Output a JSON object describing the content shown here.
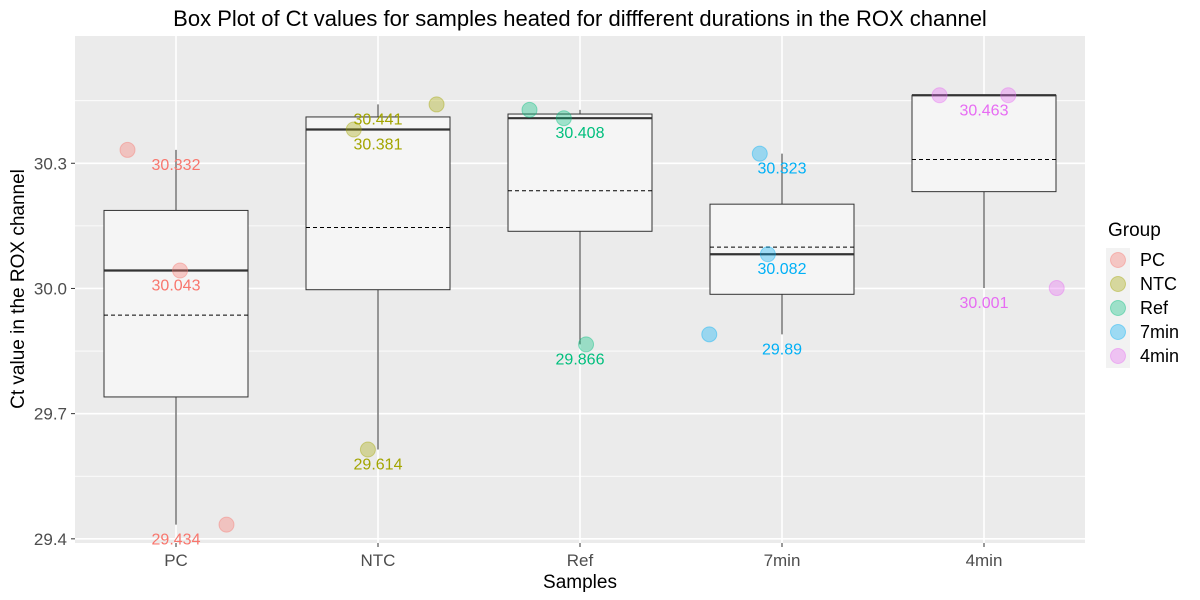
{
  "chart_data": {
    "type": "box",
    "title": "Box Plot of Ct values for samples heated for diffferent durations in the ROX channel",
    "xlabel": "Samples",
    "ylabel": "Ct value in the ROX channel",
    "ylim": [
      29.39,
      30.605
    ],
    "yticks": [
      29.4,
      29.7,
      30.0,
      30.3
    ],
    "ytick_labels": [
      "29.4",
      "29.7",
      "30.0",
      "30.3"
    ],
    "categories": [
      "PC",
      "NTC",
      "Ref",
      "7min",
      "4min"
    ],
    "grid": true,
    "legend": {
      "title": "Group",
      "position": "right"
    },
    "colors": {
      "PC": "#F8766D",
      "NTC": "#A3A500",
      "Ref": "#00BF7D",
      "7min": "#00B0F6",
      "4min": "#E76BF3"
    },
    "boxes": [
      {
        "name": "PC",
        "whisker_low": 29.434,
        "q1": 29.74,
        "median": 30.043,
        "q3": 30.187,
        "whisker_high": 30.332,
        "mean": 29.936
      },
      {
        "name": "NTC",
        "whisker_low": 29.614,
        "q1": 29.997,
        "median": 30.381,
        "q3": 30.411,
        "whisker_high": 30.441,
        "mean": 30.146
      },
      {
        "name": "Ref",
        "whisker_low": 29.866,
        "q1": 30.137,
        "median": 30.408,
        "q3": 30.418,
        "whisker_high": 30.428,
        "mean": 30.234
      },
      {
        "name": "7min",
        "whisker_low": 29.89,
        "q1": 29.986,
        "median": 30.082,
        "q3": 30.202,
        "whisker_high": 30.323,
        "mean": 30.099
      },
      {
        "name": "4min",
        "whisker_low": 30.001,
        "q1": 30.232,
        "median": 30.463,
        "q3": 30.463,
        "whisker_high": 30.463,
        "mean": 30.309
      }
    ],
    "points": [
      {
        "group": "PC",
        "offset": -0.24,
        "y": 30.332
      },
      {
        "group": "PC",
        "offset": 0.02,
        "y": 30.043
      },
      {
        "group": "PC",
        "offset": 0.25,
        "y": 29.434
      },
      {
        "group": "NTC",
        "offset": -0.12,
        "y": 30.381
      },
      {
        "group": "NTC",
        "offset": -0.05,
        "y": 29.614
      },
      {
        "group": "NTC",
        "offset": 0.29,
        "y": 30.441
      },
      {
        "group": "Ref",
        "offset": -0.25,
        "y": 30.428
      },
      {
        "group": "Ref",
        "offset": -0.08,
        "y": 30.408
      },
      {
        "group": "Ref",
        "offset": 0.03,
        "y": 29.866
      },
      {
        "group": "7min",
        "offset": -0.36,
        "y": 29.89
      },
      {
        "group": "7min",
        "offset": -0.07,
        "y": 30.082
      },
      {
        "group": "7min",
        "offset": -0.11,
        "y": 30.323
      },
      {
        "group": "4min",
        "offset": -0.22,
        "y": 30.463
      },
      {
        "group": "4min",
        "offset": 0.12,
        "y": 30.463
      },
      {
        "group": "4min",
        "offset": 0.36,
        "y": 30.001
      }
    ],
    "data_labels": [
      {
        "group": "PC",
        "text": "30.332",
        "y": 30.332
      },
      {
        "group": "PC",
        "text": "30.043",
        "y": 30.043
      },
      {
        "group": "PC",
        "text": "29.434",
        "y": 29.434
      },
      {
        "group": "NTC",
        "text": "30.441",
        "y": 30.441
      },
      {
        "group": "NTC",
        "text": "30.381",
        "y": 30.381
      },
      {
        "group": "NTC",
        "text": "29.614",
        "y": 29.614
      },
      {
        "group": "Ref",
        "text": "30.408",
        "y": 30.408
      },
      {
        "group": "Ref",
        "text": "29.866",
        "y": 29.866
      },
      {
        "group": "7min",
        "text": "30.323",
        "y": 30.323
      },
      {
        "group": "7min",
        "text": "30.082",
        "y": 30.082
      },
      {
        "group": "7min",
        "text": "29.89",
        "y": 29.89
      },
      {
        "group": "4min",
        "text": "30.463",
        "y": 30.463
      },
      {
        "group": "4min",
        "text": "30.001",
        "y": 30.001
      }
    ],
    "panel_background": "#EBEBEB",
    "box_fill": "#F5F5F5"
  }
}
